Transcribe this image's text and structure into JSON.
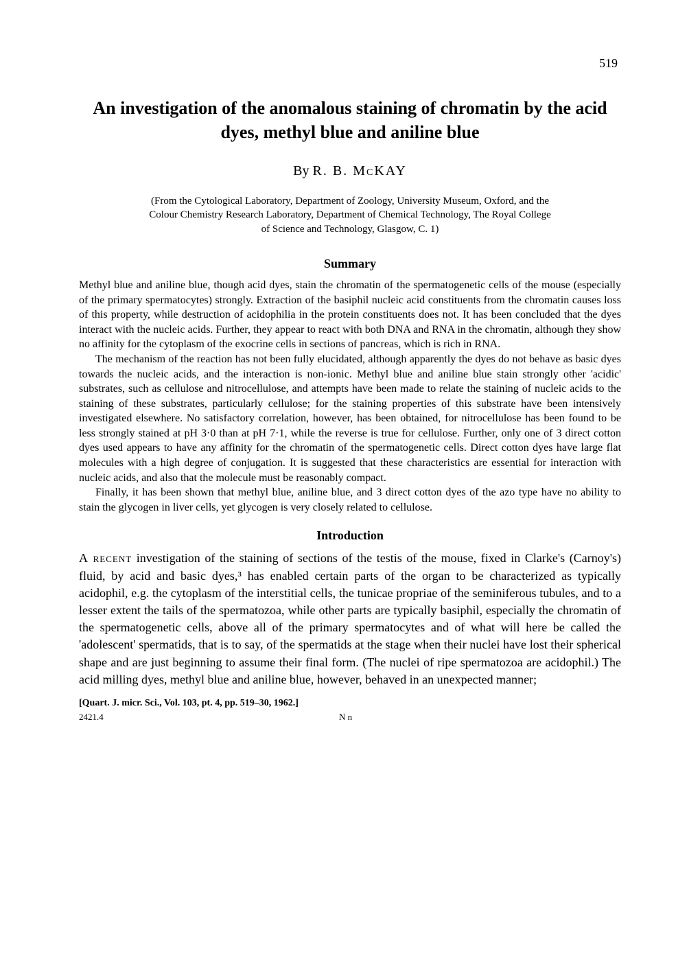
{
  "page_number": "519",
  "title": "An investigation of the anomalous staining of chromatin by the acid dyes, methyl blue and aniline blue",
  "author_prefix": "By ",
  "author_name": "R. B. McKAY",
  "affiliation": "(From the Cytological Laboratory, Department of Zoology, University Museum, Oxford, and the Colour Chemistry Research Laboratory, Department of Chemical Technology, The Royal College of Science and Technology, Glasgow, C. 1)",
  "summary_heading": "Summary",
  "summary_p1": "Methyl blue and aniline blue, though acid dyes, stain the chromatin of the spermatogenetic cells of the mouse (especially of the primary spermatocytes) strongly. Extraction of the basiphil nucleic acid constituents from the chromatin causes loss of this property, while destruction of acidophilia in the protein constituents does not. It has been concluded that the dyes interact with the nucleic acids. Further, they appear to react with both DNA and RNA in the chromatin, although they show no affinity for the cytoplasm of the exocrine cells in sections of pancreas, which is rich in RNA.",
  "summary_p2": "The mechanism of the reaction has not been fully elucidated, although apparently the dyes do not behave as basic dyes towards the nucleic acids, and the interaction is non-ionic. Methyl blue and aniline blue stain strongly other 'acidic' substrates, such as cellulose and nitrocellulose, and attempts have been made to relate the staining of nucleic acids to the staining of these substrates, particularly cellulose; for the staining properties of this substrate have been intensively investigated elsewhere. No satisfactory correlation, however, has been obtained, for nitrocellulose has been found to be less strongly stained at pH 3·0 than at pH 7·1, while the reverse is true for cellulose. Further, only one of 3 direct cotton dyes used appears to have any affinity for the chromatin of the spermatogenetic cells. Direct cotton dyes have large flat molecules with a high degree of conjugation. It is suggested that these characteristics are essential for interaction with nucleic acids, and also that the molecule must be reasonably compact.",
  "summary_p3": "Finally, it has been shown that methyl blue, aniline blue, and 3 direct cotton dyes of the azo type have no ability to stain the glycogen in liver cells, yet glycogen is very closely related to cellulose.",
  "intro_heading": "Introduction",
  "intro_lead": "A recent",
  "intro_p1_rest": " investigation of the staining of sections of the testis of the mouse, fixed in Clarke's (Carnoy's) fluid, by acid and basic dyes,³ has enabled certain parts of the organ to be characterized as typically acidophil, e.g. the cytoplasm of the interstitial cells, the tunicae propriae of the seminiferous tubules, and to a lesser extent the tails of the spermatozoa, while other parts are typically basiphil, especially the chromatin of the spermatogenetic cells, above all of the primary spermatocytes and of what will here be called the 'adolescent' spermatids, that is to say, of the spermatids at the stage when their nuclei have lost their spherical shape and are just beginning to assume their final form. (The nuclei of ripe spermatozoa are acidophil.) The acid milling dyes, methyl blue and aniline blue, however, behaved in an unexpected manner;",
  "citation": "[Quart. J. micr. Sci., Vol. 103, pt. 4, pp. 519–30, 1962.]",
  "folio_num": "2421.4",
  "folio_sig": "N n"
}
